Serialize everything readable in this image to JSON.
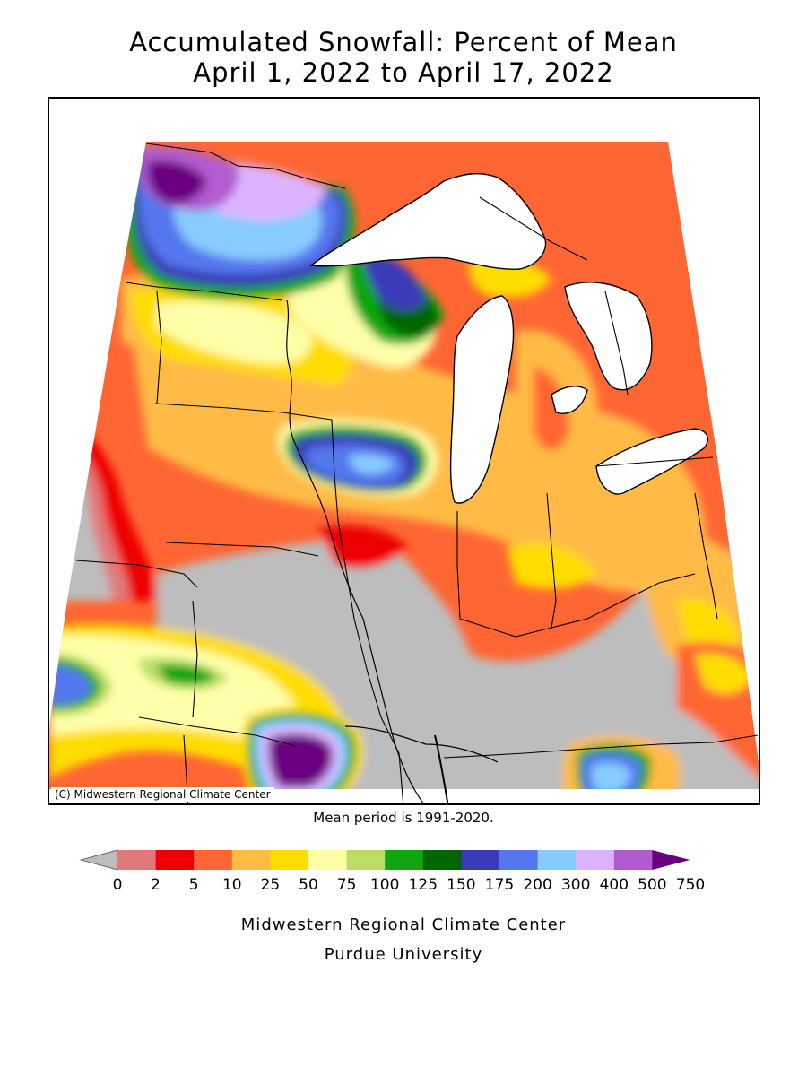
{
  "title": {
    "line1": "Accumulated Snowfall: Percent of Mean",
    "line2": "April 1, 2022 to April 17, 2022"
  },
  "map": {
    "copyright": "(C) Midwestern Regional Climate Center",
    "mean_period": "Mean period is 1991-2020."
  },
  "legend": {
    "bins": [
      {
        "label": "0",
        "color": "#bdbdbd"
      },
      {
        "label": "2",
        "color": "#e07a7a"
      },
      {
        "label": "5",
        "color": "#ee0000"
      },
      {
        "label": "10",
        "color": "#ff6633"
      },
      {
        "label": "25",
        "color": "#ffbb44"
      },
      {
        "label": "50",
        "color": "#ffdd00"
      },
      {
        "label": "75",
        "color": "#ffffaa"
      },
      {
        "label": "100",
        "color": "#bbdd66"
      },
      {
        "label": "125",
        "color": "#11a611"
      },
      {
        "label": "150",
        "color": "#006600"
      },
      {
        "label": "175",
        "color": "#3b3bb8"
      },
      {
        "label": "200",
        "color": "#5577ee"
      },
      {
        "label": "300",
        "color": "#88ccff"
      },
      {
        "label": "400",
        "color": "#ddb3ff"
      },
      {
        "label": "500",
        "color": "#b15bd0"
      },
      {
        "label": "750",
        "color": "#6a0080"
      }
    ]
  },
  "credits": {
    "line1": "Midwestern Regional Climate Center",
    "line2": "Purdue University"
  }
}
